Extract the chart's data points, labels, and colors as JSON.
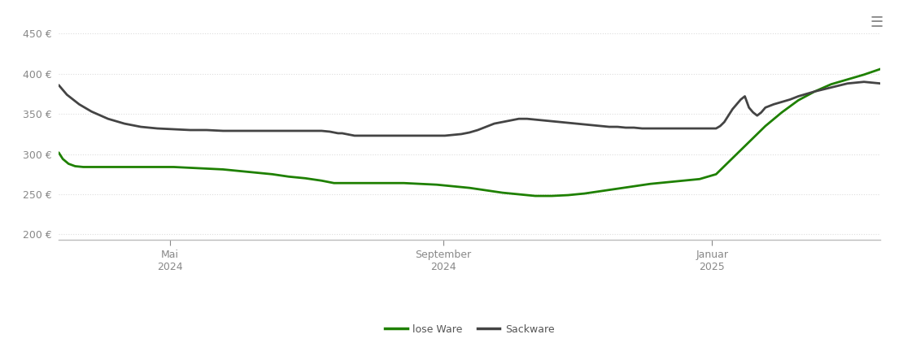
{
  "background_color": "#ffffff",
  "grid_color": "#dddddd",
  "grid_style": "dotted",
  "ylim": [
    193,
    462
  ],
  "yticks": [
    200,
    250,
    300,
    350,
    400,
    450
  ],
  "x_tick_labels": [
    [
      "Mai\n2024",
      0.135
    ],
    [
      "September\n2024",
      0.468
    ],
    [
      "Januar\n2025",
      0.795
    ]
  ],
  "legend_labels": [
    "lose Ware",
    "Sackware"
  ],
  "lose_ware_color": "#1e8000",
  "sackware_color": "#444444",
  "line_width": 2.0,
  "lose_ware_x": [
    0.0,
    0.005,
    0.012,
    0.02,
    0.03,
    0.045,
    0.06,
    0.08,
    0.1,
    0.12,
    0.14,
    0.16,
    0.18,
    0.2,
    0.22,
    0.24,
    0.26,
    0.28,
    0.3,
    0.32,
    0.335,
    0.34,
    0.35,
    0.36,
    0.37,
    0.38,
    0.39,
    0.4,
    0.42,
    0.44,
    0.46,
    0.48,
    0.5,
    0.52,
    0.54,
    0.56,
    0.58,
    0.6,
    0.62,
    0.64,
    0.66,
    0.68,
    0.7,
    0.72,
    0.74,
    0.76,
    0.78,
    0.8,
    0.82,
    0.84,
    0.86,
    0.88,
    0.9,
    0.92,
    0.94,
    0.96,
    0.98,
    1.0
  ],
  "lose_ware_y": [
    302,
    294,
    288,
    285,
    284,
    284,
    284,
    284,
    284,
    284,
    284,
    283,
    282,
    281,
    279,
    277,
    275,
    272,
    270,
    267,
    264,
    264,
    264,
    264,
    264,
    264,
    264,
    264,
    264,
    263,
    262,
    260,
    258,
    255,
    252,
    250,
    248,
    248,
    249,
    251,
    254,
    257,
    260,
    263,
    265,
    267,
    269,
    275,
    295,
    315,
    335,
    352,
    367,
    378,
    387,
    393,
    399,
    406
  ],
  "sackware_x": [
    0.0,
    0.01,
    0.025,
    0.04,
    0.06,
    0.08,
    0.1,
    0.12,
    0.14,
    0.16,
    0.18,
    0.2,
    0.22,
    0.24,
    0.26,
    0.28,
    0.3,
    0.32,
    0.33,
    0.335,
    0.34,
    0.345,
    0.35,
    0.36,
    0.37,
    0.38,
    0.39,
    0.4,
    0.41,
    0.42,
    0.43,
    0.44,
    0.45,
    0.46,
    0.47,
    0.48,
    0.49,
    0.5,
    0.51,
    0.52,
    0.53,
    0.54,
    0.55,
    0.56,
    0.57,
    0.58,
    0.59,
    0.6,
    0.61,
    0.62,
    0.63,
    0.64,
    0.65,
    0.66,
    0.67,
    0.68,
    0.69,
    0.7,
    0.71,
    0.72,
    0.73,
    0.74,
    0.75,
    0.76,
    0.77,
    0.78,
    0.79,
    0.8,
    0.805,
    0.81,
    0.815,
    0.82,
    0.825,
    0.83,
    0.835,
    0.84,
    0.845,
    0.85,
    0.855,
    0.86,
    0.87,
    0.88,
    0.89,
    0.9,
    0.92,
    0.94,
    0.96,
    0.98,
    1.0
  ],
  "sackware_y": [
    386,
    374,
    362,
    353,
    344,
    338,
    334,
    332,
    331,
    330,
    330,
    329,
    329,
    329,
    329,
    329,
    329,
    329,
    328,
    327,
    326,
    326,
    325,
    323,
    323,
    323,
    323,
    323,
    323,
    323,
    323,
    323,
    323,
    323,
    323,
    324,
    325,
    327,
    330,
    334,
    338,
    340,
    342,
    344,
    344,
    343,
    342,
    341,
    340,
    339,
    338,
    337,
    336,
    335,
    334,
    334,
    333,
    333,
    332,
    332,
    332,
    332,
    332,
    332,
    332,
    332,
    332,
    332,
    335,
    340,
    348,
    356,
    362,
    368,
    372,
    358,
    352,
    348,
    352,
    358,
    362,
    365,
    368,
    372,
    378,
    383,
    388,
    390,
    388
  ]
}
